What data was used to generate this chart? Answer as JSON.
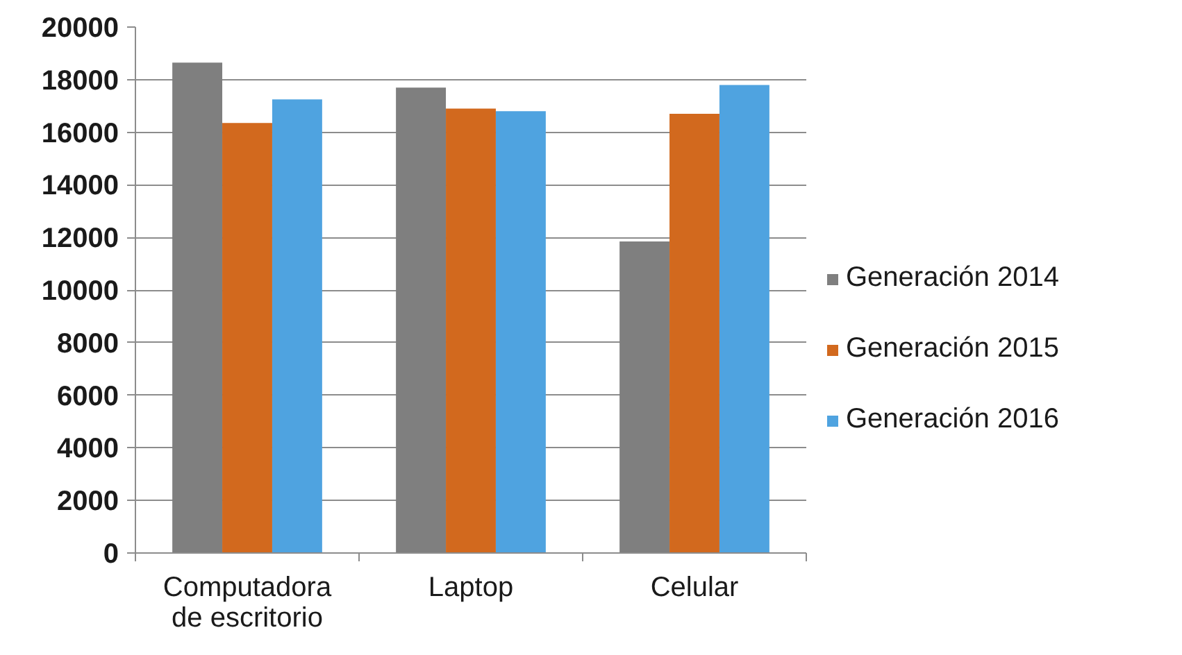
{
  "chart_data": {
    "type": "bar",
    "categories": [
      "Computadora de escritorio",
      "Laptop",
      "Celular"
    ],
    "series": [
      {
        "name": "Generación 2014",
        "color": "#7f7f7f",
        "values": [
          18650,
          17700,
          11850
        ]
      },
      {
        "name": "Generación 2015",
        "color": "#d2691e",
        "values": [
          16350,
          16900,
          16700
        ]
      },
      {
        "name": "Generación 2016",
        "color": "#4fa3e0",
        "values": [
          17250,
          16800,
          17800
        ]
      }
    ],
    "ylim": [
      0,
      20000
    ],
    "yticks": [
      0,
      2000,
      4000,
      6000,
      8000,
      10000,
      12000,
      14000,
      16000,
      18000,
      20000
    ],
    "grid": "y",
    "legend": "right"
  }
}
